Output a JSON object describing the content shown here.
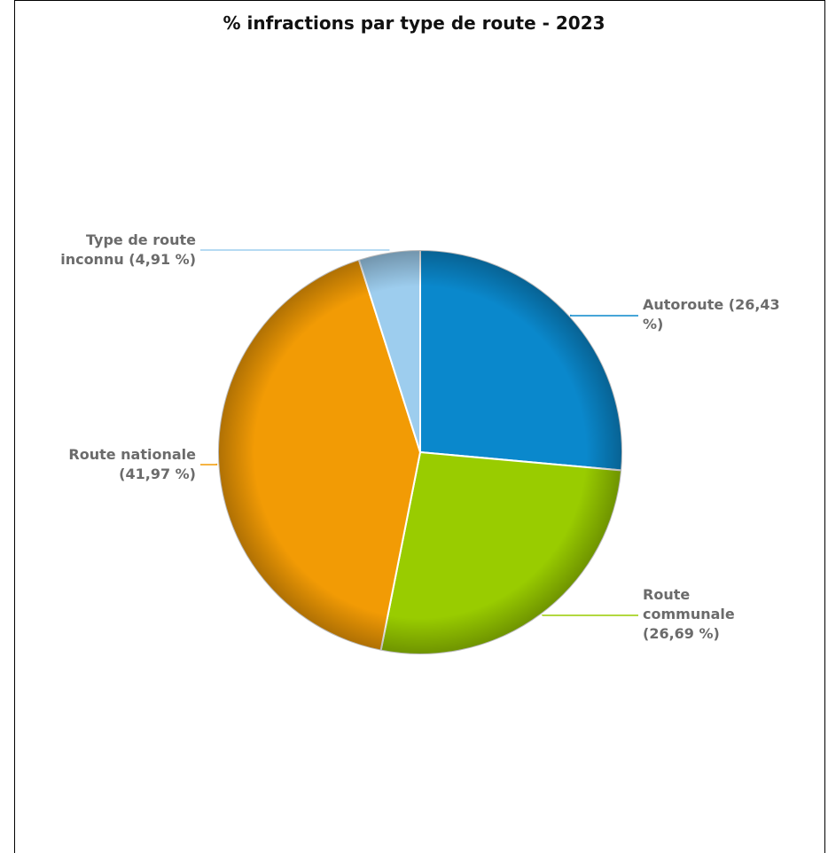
{
  "chart_data": {
    "type": "pie",
    "title": "% infractions par type de route - 2023",
    "slices": [
      {
        "name": "Autoroute",
        "value": 26.43,
        "color": "#0a88cc",
        "label_lines": [
          "Autoroute (26,43",
          "%)"
        ]
      },
      {
        "name": "Route communale",
        "value": 26.69,
        "color": "#99cc00",
        "label_lines": [
          "Route",
          "communale",
          "(26,69 %)"
        ]
      },
      {
        "name": "Route nationale",
        "value": 41.97,
        "color": "#f29b05",
        "label_lines": [
          "Route nationale",
          "(41,97 %)"
        ]
      },
      {
        "name": "Type de route inconnu",
        "value": 4.91,
        "color": "#9dcdee",
        "label_lines": [
          "Type de route",
          "inconnu (4,91 %)"
        ]
      }
    ]
  }
}
